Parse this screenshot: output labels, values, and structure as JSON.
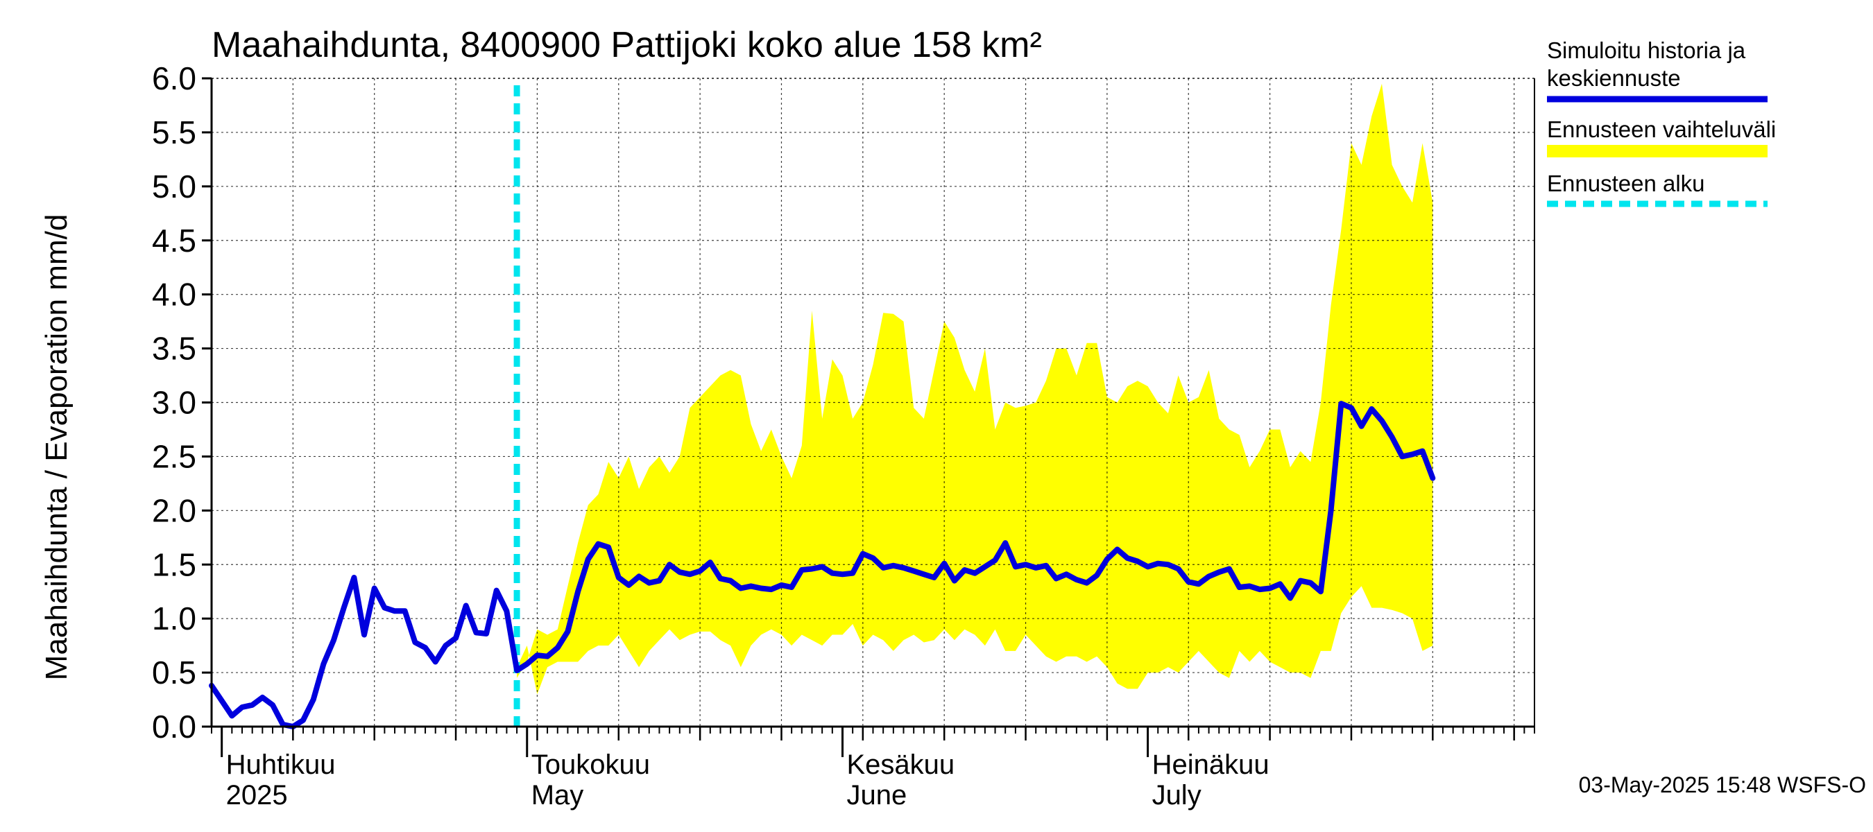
{
  "chart_data": {
    "type": "area",
    "title": "Maahaihdunta, 8400900 Pattijoki koko alue 158 km²",
    "ylabel": "Maahaihdunta / Evaporation   mm/d",
    "ylim": [
      0,
      6
    ],
    "yticks": [
      "0.0",
      "0.5",
      "1.0",
      "1.5",
      "2.0",
      "2.5",
      "3.0",
      "3.5",
      "4.0",
      "4.5",
      "5.0",
      "5.5",
      "6.0"
    ],
    "x_start": "2025-03-31",
    "x_end": "2025-08-08",
    "grid": true,
    "months": [
      {
        "date": "2025-04-01",
        "fi": "Huhtikuu",
        "en": "2025"
      },
      {
        "date": "2025-05-01",
        "fi": "Toukokuu",
        "en": "May"
      },
      {
        "date": "2025-06-01",
        "fi": "Kesäkuu",
        "en": "June"
      },
      {
        "date": "2025-07-01",
        "fi": "Heinäkuu",
        "en": "July"
      }
    ],
    "forecast_start": "2025-04-30",
    "legend": [
      {
        "label": "Simuloitu historia ja keskiennuste",
        "color": "#0000dd",
        "style": "solid"
      },
      {
        "label": "Ennusteen vaihteluväli",
        "color": "#ffff00",
        "style": "band"
      },
      {
        "label": "Ennusteen alku",
        "color": "#00e5ee",
        "style": "dashed"
      }
    ],
    "series": [
      {
        "name": "Simuloitu historia ja keskiennuste",
        "color": "#0000dd",
        "points": [
          [
            "2025-03-31",
            0.38
          ],
          [
            "2025-04-02",
            0.1
          ],
          [
            "2025-04-03",
            0.18
          ],
          [
            "2025-04-04",
            0.2
          ],
          [
            "2025-04-05",
            0.27
          ],
          [
            "2025-04-06",
            0.2
          ],
          [
            "2025-04-07",
            0.02
          ],
          [
            "2025-04-08",
            0.0
          ],
          [
            "2025-04-09",
            0.06
          ],
          [
            "2025-04-10",
            0.25
          ],
          [
            "2025-04-11",
            0.58
          ],
          [
            "2025-04-12",
            0.8
          ],
          [
            "2025-04-13",
            1.1
          ],
          [
            "2025-04-14",
            1.38
          ],
          [
            "2025-04-15",
            0.85
          ],
          [
            "2025-04-16",
            1.28
          ],
          [
            "2025-04-17",
            1.1
          ],
          [
            "2025-04-18",
            1.07
          ],
          [
            "2025-04-19",
            1.07
          ],
          [
            "2025-04-20",
            0.78
          ],
          [
            "2025-04-21",
            0.73
          ],
          [
            "2025-04-22",
            0.6
          ],
          [
            "2025-04-23",
            0.75
          ],
          [
            "2025-04-24",
            0.82
          ],
          [
            "2025-04-25",
            1.12
          ],
          [
            "2025-04-26",
            0.87
          ],
          [
            "2025-04-27",
            0.86
          ],
          [
            "2025-04-28",
            1.26
          ],
          [
            "2025-04-29",
            1.07
          ],
          [
            "2025-04-30",
            0.52
          ],
          [
            "2025-05-01",
            0.58
          ],
          [
            "2025-05-02",
            0.66
          ],
          [
            "2025-05-03",
            0.65
          ],
          [
            "2025-05-04",
            0.73
          ],
          [
            "2025-05-05",
            0.88
          ],
          [
            "2025-05-06",
            1.25
          ],
          [
            "2025-05-07",
            1.55
          ],
          [
            "2025-05-08",
            1.69
          ],
          [
            "2025-05-09",
            1.66
          ],
          [
            "2025-05-10",
            1.38
          ],
          [
            "2025-05-11",
            1.31
          ],
          [
            "2025-05-12",
            1.39
          ],
          [
            "2025-05-13",
            1.33
          ],
          [
            "2025-05-14",
            1.35
          ],
          [
            "2025-05-15",
            1.5
          ],
          [
            "2025-05-16",
            1.43
          ],
          [
            "2025-05-17",
            1.41
          ],
          [
            "2025-05-18",
            1.44
          ],
          [
            "2025-05-19",
            1.52
          ],
          [
            "2025-05-20",
            1.37
          ],
          [
            "2025-05-21",
            1.35
          ],
          [
            "2025-05-22",
            1.28
          ],
          [
            "2025-05-23",
            1.3
          ],
          [
            "2025-05-24",
            1.28
          ],
          [
            "2025-05-25",
            1.27
          ],
          [
            "2025-05-26",
            1.31
          ],
          [
            "2025-05-27",
            1.29
          ],
          [
            "2025-05-28",
            1.45
          ],
          [
            "2025-05-29",
            1.46
          ],
          [
            "2025-05-30",
            1.48
          ],
          [
            "2025-05-31",
            1.42
          ],
          [
            "2025-06-01",
            1.41
          ],
          [
            "2025-06-02",
            1.42
          ],
          [
            "2025-06-03",
            1.6
          ],
          [
            "2025-06-04",
            1.56
          ],
          [
            "2025-06-05",
            1.47
          ],
          [
            "2025-06-06",
            1.49
          ],
          [
            "2025-06-07",
            1.47
          ],
          [
            "2025-06-08",
            1.44
          ],
          [
            "2025-06-09",
            1.41
          ],
          [
            "2025-06-10",
            1.38
          ],
          [
            "2025-06-11",
            1.51
          ],
          [
            "2025-06-12",
            1.35
          ],
          [
            "2025-06-13",
            1.45
          ],
          [
            "2025-06-14",
            1.42
          ],
          [
            "2025-06-15",
            1.48
          ],
          [
            "2025-06-16",
            1.54
          ],
          [
            "2025-06-17",
            1.7
          ],
          [
            "2025-06-18",
            1.48
          ],
          [
            "2025-06-19",
            1.5
          ],
          [
            "2025-06-20",
            1.47
          ],
          [
            "2025-06-21",
            1.49
          ],
          [
            "2025-06-22",
            1.37
          ],
          [
            "2025-06-23",
            1.41
          ],
          [
            "2025-06-24",
            1.36
          ],
          [
            "2025-06-25",
            1.33
          ],
          [
            "2025-06-26",
            1.4
          ],
          [
            "2025-06-27",
            1.55
          ],
          [
            "2025-06-28",
            1.64
          ],
          [
            "2025-06-29",
            1.56
          ],
          [
            "2025-06-30",
            1.53
          ],
          [
            "2025-07-01",
            1.48
          ],
          [
            "2025-07-02",
            1.51
          ],
          [
            "2025-07-03",
            1.5
          ],
          [
            "2025-07-04",
            1.46
          ],
          [
            "2025-07-05",
            1.34
          ],
          [
            "2025-07-06",
            1.32
          ],
          [
            "2025-07-07",
            1.39
          ],
          [
            "2025-07-08",
            1.43
          ],
          [
            "2025-07-09",
            1.46
          ],
          [
            "2025-07-10",
            1.29
          ],
          [
            "2025-07-11",
            1.3
          ],
          [
            "2025-07-12",
            1.27
          ],
          [
            "2025-07-13",
            1.28
          ],
          [
            "2025-07-14",
            1.32
          ],
          [
            "2025-07-15",
            1.19
          ],
          [
            "2025-07-16",
            1.35
          ],
          [
            "2025-07-17",
            1.33
          ],
          [
            "2025-07-18",
            1.25
          ],
          [
            "2025-07-19",
            2.0
          ],
          [
            "2025-07-20",
            2.99
          ],
          [
            "2025-07-21",
            2.95
          ],
          [
            "2025-07-22",
            2.78
          ],
          [
            "2025-07-23",
            2.94
          ],
          [
            "2025-07-24",
            2.83
          ],
          [
            "2025-07-25",
            2.68
          ],
          [
            "2025-07-26",
            2.5
          ],
          [
            "2025-07-27",
            2.52
          ],
          [
            "2025-07-28",
            2.55
          ],
          [
            "2025-07-29",
            2.3
          ]
        ]
      },
      {
        "name": "Ennusteen vaihteluväli",
        "color": "#ffff00",
        "band": [
          [
            "2025-04-30",
            0.45,
            0.55
          ],
          [
            "2025-05-01",
            0.6,
            0.75
          ],
          [
            "2025-05-02",
            0.9,
            0.3
          ],
          [
            "2025-05-03",
            0.85,
            0.55
          ],
          [
            "2025-05-04",
            0.9,
            0.6
          ],
          [
            "2025-05-05",
            1.3,
            0.6
          ],
          [
            "2025-05-06",
            1.7,
            0.6
          ],
          [
            "2025-05-07",
            2.05,
            0.7
          ],
          [
            "2025-05-08",
            2.15,
            0.75
          ],
          [
            "2025-05-09",
            2.45,
            0.75
          ],
          [
            "2025-05-10",
            2.3,
            0.85
          ],
          [
            "2025-05-11",
            2.5,
            0.7
          ],
          [
            "2025-05-12",
            2.2,
            0.55
          ],
          [
            "2025-05-13",
            2.4,
            0.7
          ],
          [
            "2025-05-14",
            2.5,
            0.8
          ],
          [
            "2025-05-15",
            2.35,
            0.9
          ],
          [
            "2025-05-16",
            2.5,
            0.8
          ],
          [
            "2025-05-17",
            2.95,
            0.85
          ],
          [
            "2025-05-18",
            3.05,
            0.88
          ],
          [
            "2025-05-19",
            3.15,
            0.88
          ],
          [
            "2025-05-20",
            3.25,
            0.8
          ],
          [
            "2025-05-21",
            3.3,
            0.75
          ],
          [
            "2025-05-22",
            3.25,
            0.55
          ],
          [
            "2025-05-23",
            2.8,
            0.75
          ],
          [
            "2025-05-24",
            2.55,
            0.85
          ],
          [
            "2025-05-25",
            2.75,
            0.9
          ],
          [
            "2025-05-26",
            2.5,
            0.85
          ],
          [
            "2025-05-27",
            2.3,
            0.75
          ],
          [
            "2025-05-28",
            2.6,
            0.85
          ],
          [
            "2025-05-29",
            3.85,
            0.8
          ],
          [
            "2025-05-30",
            2.85,
            0.75
          ],
          [
            "2025-05-31",
            3.4,
            0.85
          ],
          [
            "2025-06-01",
            3.25,
            0.85
          ],
          [
            "2025-06-02",
            2.85,
            0.95
          ],
          [
            "2025-06-03",
            3.0,
            0.75
          ],
          [
            "2025-06-04",
            3.35,
            0.85
          ],
          [
            "2025-06-05",
            3.83,
            0.8
          ],
          [
            "2025-06-06",
            3.82,
            0.7
          ],
          [
            "2025-06-07",
            3.75,
            0.8
          ],
          [
            "2025-06-08",
            2.95,
            0.85
          ],
          [
            "2025-06-09",
            2.85,
            0.78
          ],
          [
            "2025-06-10",
            3.3,
            0.8
          ],
          [
            "2025-06-11",
            3.75,
            0.9
          ],
          [
            "2025-06-12",
            3.6,
            0.8
          ],
          [
            "2025-06-13",
            3.3,
            0.9
          ],
          [
            "2025-06-14",
            3.1,
            0.85
          ],
          [
            "2025-06-15",
            3.5,
            0.75
          ],
          [
            "2025-06-16",
            2.75,
            0.9
          ],
          [
            "2025-06-17",
            3.0,
            0.7
          ],
          [
            "2025-06-18",
            2.95,
            0.7
          ],
          [
            "2025-06-19",
            2.97,
            0.85
          ],
          [
            "2025-06-20",
            3.0,
            0.75
          ],
          [
            "2025-06-21",
            3.2,
            0.65
          ],
          [
            "2025-06-22",
            3.5,
            0.6
          ],
          [
            "2025-06-23",
            3.5,
            0.65
          ],
          [
            "2025-06-24",
            3.25,
            0.65
          ],
          [
            "2025-06-25",
            3.55,
            0.6
          ],
          [
            "2025-06-26",
            3.55,
            0.65
          ],
          [
            "2025-06-27",
            3.05,
            0.55
          ],
          [
            "2025-06-28",
            3.0,
            0.4
          ],
          [
            "2025-06-29",
            3.15,
            0.35
          ],
          [
            "2025-06-30",
            3.2,
            0.35
          ],
          [
            "2025-07-01",
            3.15,
            0.5
          ],
          [
            "2025-07-02",
            3.0,
            0.5
          ],
          [
            "2025-07-03",
            2.9,
            0.55
          ],
          [
            "2025-07-04",
            3.25,
            0.5
          ],
          [
            "2025-07-05",
            3.0,
            0.6
          ],
          [
            "2025-07-06",
            3.05,
            0.7
          ],
          [
            "2025-07-07",
            3.3,
            0.6
          ],
          [
            "2025-07-08",
            2.85,
            0.5
          ],
          [
            "2025-07-09",
            2.75,
            0.45
          ],
          [
            "2025-07-10",
            2.7,
            0.7
          ],
          [
            "2025-07-11",
            2.4,
            0.6
          ],
          [
            "2025-07-12",
            2.55,
            0.7
          ],
          [
            "2025-07-13",
            2.75,
            0.6
          ],
          [
            "2025-07-14",
            2.75,
            0.55
          ],
          [
            "2025-07-15",
            2.4,
            0.5
          ],
          [
            "2025-07-16",
            2.55,
            0.5
          ],
          [
            "2025-07-17",
            2.45,
            0.45
          ],
          [
            "2025-07-18",
            3.0,
            0.7
          ],
          [
            "2025-07-19",
            3.9,
            0.7
          ],
          [
            "2025-07-20",
            4.6,
            1.05
          ],
          [
            "2025-07-21",
            5.4,
            1.2
          ],
          [
            "2025-07-22",
            5.2,
            1.3
          ],
          [
            "2025-07-23",
            5.65,
            1.1
          ],
          [
            "2025-07-24",
            5.95,
            1.1
          ],
          [
            "2025-07-25",
            5.2,
            1.08
          ],
          [
            "2025-07-26",
            5.0,
            1.05
          ],
          [
            "2025-07-27",
            4.85,
            1.0
          ],
          [
            "2025-07-28",
            5.4,
            0.7
          ],
          [
            "2025-07-29",
            4.85,
            0.75
          ]
        ]
      }
    ]
  },
  "footer": {
    "timestamp": "03-May-2025 15:48 WSFS-O"
  }
}
